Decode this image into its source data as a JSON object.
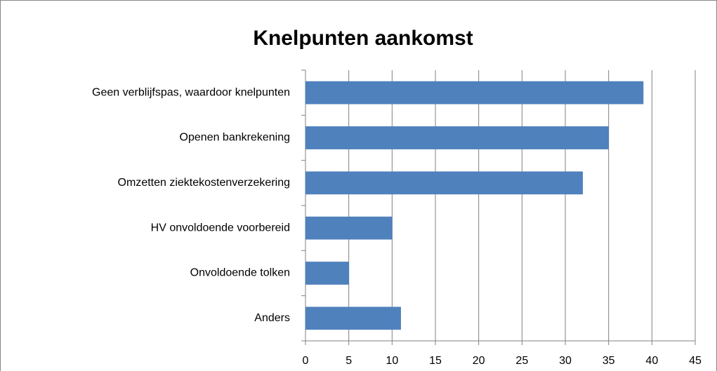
{
  "chart_data": {
    "type": "bar",
    "orientation": "horizontal",
    "title": "Knelpunten aankomst",
    "categories": [
      "Geen verblijfspas, waardoor knelpunten",
      "Openen bankrekening",
      "Omzetten ziektekostenverzekering",
      "HV onvoldoende voorbereid",
      "Onvoldoende tolken",
      "Anders"
    ],
    "values": [
      39,
      35,
      32,
      10,
      5,
      11
    ],
    "color": "#4f81bd",
    "xlim": [
      0,
      45
    ],
    "xticks": [
      0,
      5,
      10,
      15,
      20,
      25,
      30,
      35,
      40,
      45
    ],
    "grid": true
  }
}
